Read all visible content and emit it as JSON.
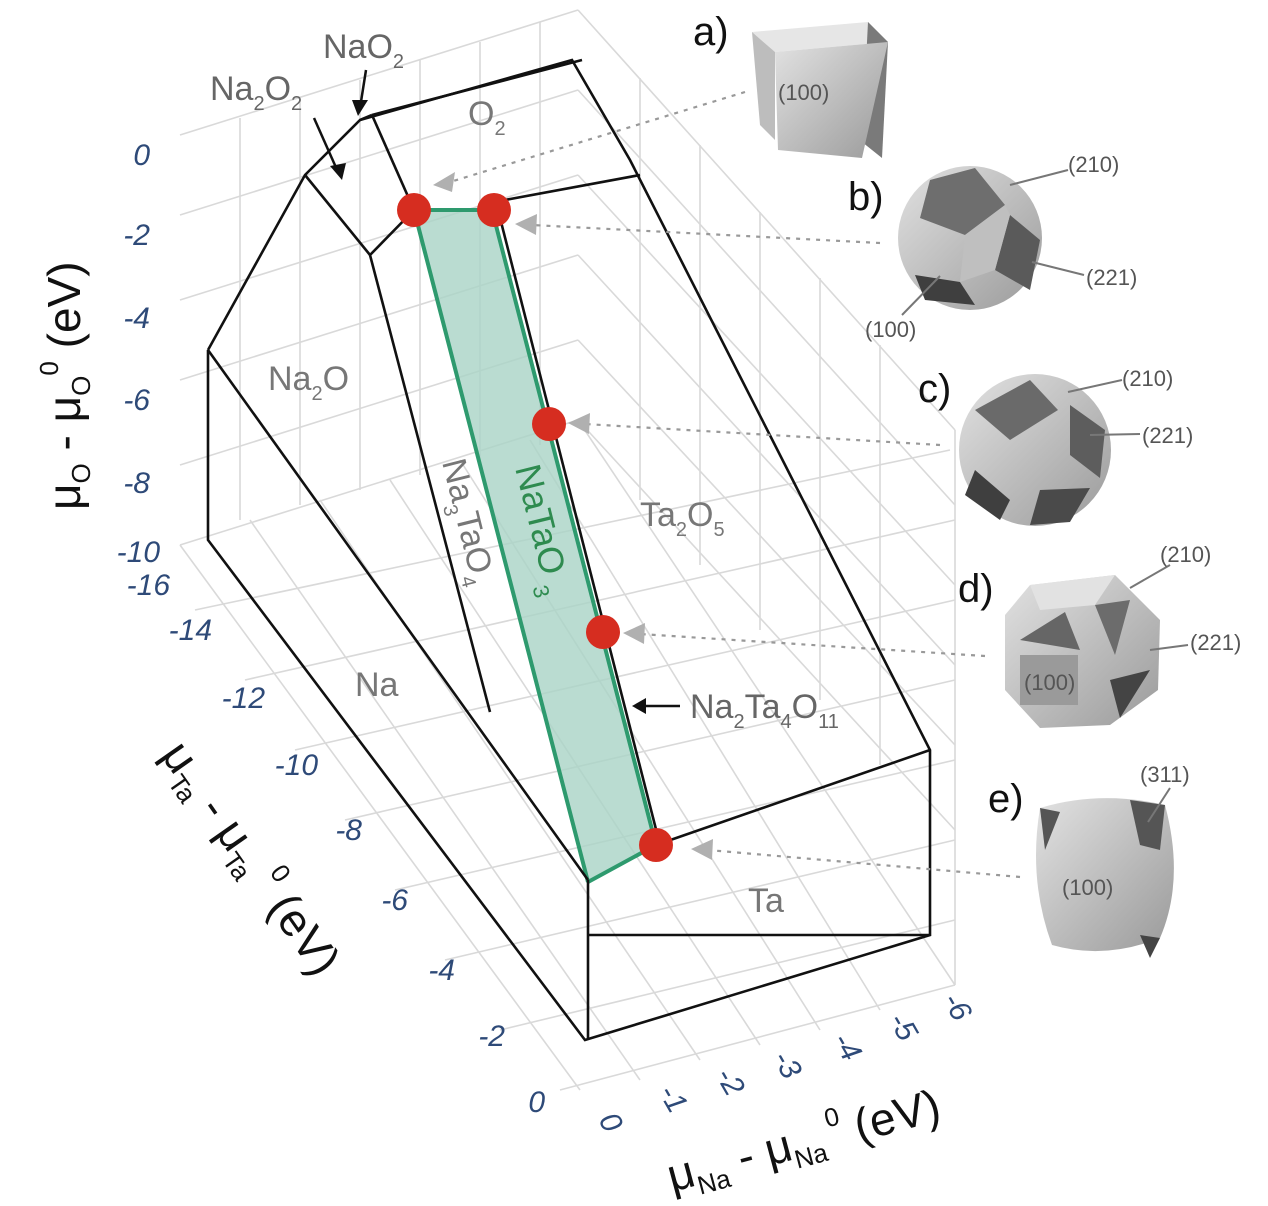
{
  "axes": {
    "y_title": "μ",
    "y_title_sub": "O",
    "y_title_mid": " - μ",
    "y_title_sub2": "O",
    "y_title_sup": "0",
    "y_title_unit": " (eV)",
    "y_ticks": [
      "0",
      "-2",
      "-4",
      "-6",
      "-8",
      "-10"
    ],
    "ta_title": "μ",
    "ta_title_sub": "Ta",
    "ta_title_mid": " - μ",
    "ta_title_sub2": "Ta",
    "ta_title_sup": "0",
    "ta_title_unit": " (eV)",
    "ta_ticks": [
      "-16",
      "-14",
      "-12",
      "-10",
      "-8",
      "-6",
      "-4",
      "-2",
      "0"
    ],
    "na_title": "μ",
    "na_title_sub": "Na",
    "na_title_mid": " - μ",
    "na_title_sub2": "Na",
    "na_title_sup": "0",
    "na_title_unit": " (eV)",
    "na_ticks": [
      "0",
      "-1",
      "-2",
      "-3",
      "-4",
      "-5",
      "-6"
    ]
  },
  "regions": {
    "o2": {
      "main": "O",
      "sub": "2"
    },
    "na2o": {
      "a": "Na",
      "sub": "2",
      "b": "O"
    },
    "na": "Na",
    "ta": "Ta",
    "ta2o5": {
      "a": "Ta",
      "sub1": "2",
      "b": "O",
      "sub2": "5"
    },
    "na3tao4": {
      "a": "Na",
      "sub1": "3",
      "b": "TaO",
      "sub2": "4"
    },
    "natao3": {
      "main": "NaTaO",
      "sub": "3"
    }
  },
  "annotations": {
    "nao2": {
      "a": "NaO",
      "sub": "2"
    },
    "na2o2": {
      "a": "Na",
      "sub1": "2",
      "b": "O",
      "sub2": "2"
    },
    "na2ta4o11": {
      "a": "Na",
      "sub1": "2",
      "b": "Ta",
      "sub2": "4",
      "c": "O",
      "sub3": "11"
    }
  },
  "panels": [
    {
      "label": "a)",
      "facets": [
        "(100)"
      ]
    },
    {
      "label": "b)",
      "facets": [
        "(210)",
        "(221)",
        "(100)"
      ]
    },
    {
      "label": "c)",
      "facets": [
        "(210)",
        "(221)"
      ]
    },
    {
      "label": "d)",
      "facets": [
        "(210)",
        "(221)",
        "(100)"
      ]
    },
    {
      "label": "e)",
      "facets": [
        "(311)",
        "(100)"
      ]
    }
  ],
  "colors": {
    "natao3_fill": "#a9d3c6",
    "natao3_edge": "#2e9a6e",
    "natao3_label": "#2e8b4f",
    "marker": "#d62d20",
    "tick": "#2e4a78"
  },
  "markers_count": 5
}
